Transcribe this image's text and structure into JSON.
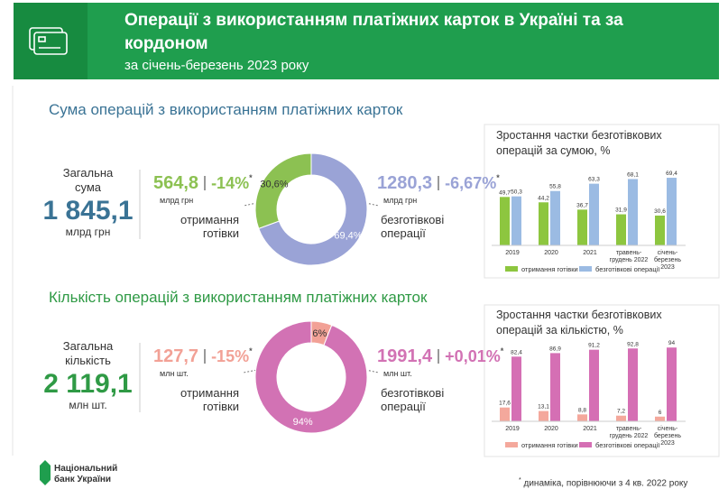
{
  "header": {
    "title": "Операції з використанням платіжних карток в Україні та за кордоном",
    "subtitle": "за січень-березень 2023 року"
  },
  "note_mark": "*",
  "sections": [
    {
      "title": "Сума операцій з використанням платіжних карток",
      "total_label": "Загальна сума",
      "total_value": "1 845,1",
      "total_unit": "млрд грн",
      "left": {
        "value": "564,8",
        "change": "-14%",
        "unit": "млрд грн"
      },
      "right": {
        "value": "1280,3",
        "change": "-6,67%",
        "unit": "млрд грн"
      }
    },
    {
      "title": "Кількість операцій з використанням платіжних карток",
      "total_label": "Загальна кількість",
      "total_value": "2 119,1",
      "total_unit": "млн шт.",
      "left": {
        "value": "127,7",
        "change": "-15%",
        "unit": "млн шт."
      },
      "right": {
        "value": "1991,4",
        "change": "+0,01%",
        "unit": "млн шт."
      }
    }
  ],
  "chart_data": [
    {
      "type": "donut",
      "categories": [
        "отримання готівки",
        "безготівкові операції"
      ],
      "values": [
        30.6,
        69.4
      ],
      "value_labels": [
        "30,6%",
        "69,4%"
      ],
      "colors": [
        "#8cc152",
        "#9aa3d6"
      ]
    },
    {
      "type": "bar",
      "title": "Зростання частки безготівкових операцій за сумою, %",
      "categories": [
        "2019",
        "2020",
        "2021",
        "травень-грудень 2022",
        "січень-березень 2023"
      ],
      "ylim": [
        0,
        100
      ],
      "series": [
        {
          "name": "отримання готівки",
          "color": "#8dc63f",
          "values": [
            49.7,
            44.2,
            36.7,
            31.9,
            30.6
          ],
          "value_labels": [
            "49,7",
            "44,2",
            "36,7",
            "31,9",
            "30,6"
          ]
        },
        {
          "name": "безготівкові операції",
          "color": "#9bbbe3",
          "values": [
            50.3,
            55.8,
            63.3,
            68.1,
            69.4
          ],
          "value_labels": [
            "50,3",
            "55,8",
            "63,3",
            "68,1",
            "69,4"
          ]
        }
      ]
    },
    {
      "type": "donut",
      "categories": [
        "отримання готівки",
        "безготівкові операції"
      ],
      "values": [
        6,
        94
      ],
      "value_labels": [
        "6%",
        "94%"
      ],
      "colors": [
        "#f2a196",
        "#d272b4"
      ]
    },
    {
      "type": "bar",
      "title": "Зростання частки безготівкових операцій за кількістю, %",
      "categories": [
        "2019",
        "2020",
        "2021",
        "травень-грудень 2022",
        "січень-березень 2023"
      ],
      "ylim": [
        0,
        100
      ],
      "series": [
        {
          "name": "отримання готівки",
          "color": "#f4a89c",
          "values": [
            17.6,
            13.1,
            8.8,
            7.2,
            6
          ],
          "value_labels": [
            "17,6",
            "13,1",
            "8,8",
            "7,2",
            "6"
          ]
        },
        {
          "name": "безготівкові операції",
          "color": "#d56fb4",
          "values": [
            82.4,
            86.9,
            91.2,
            92.8,
            94
          ],
          "value_labels": [
            "82,4",
            "86,9",
            "91,2",
            "92,8",
            "94"
          ]
        }
      ]
    }
  ],
  "footer": {
    "logo": "Національний банк України",
    "note": "динаміка, порівнюючи з 4 кв. 2022 року"
  }
}
